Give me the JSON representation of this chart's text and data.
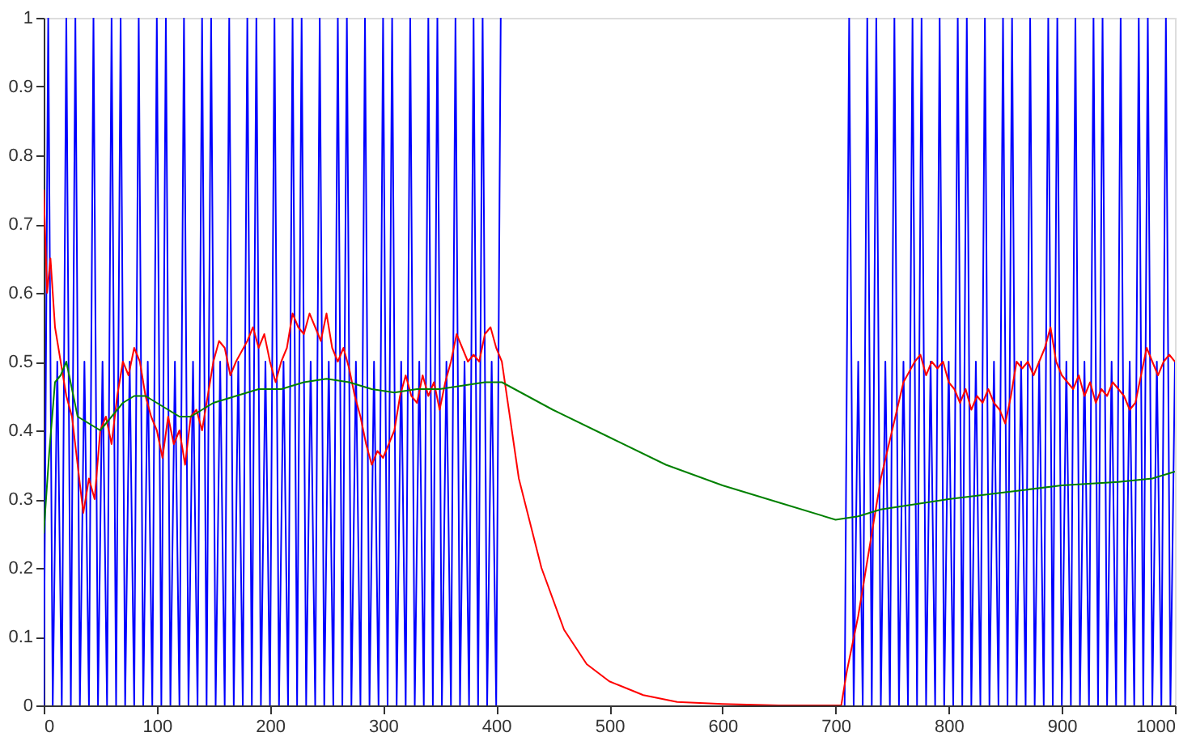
{
  "chart_data": {
    "type": "line",
    "xlim": [
      0,
      1000
    ],
    "ylim": [
      0,
      1
    ],
    "xticks": [
      0,
      100,
      200,
      300,
      400,
      500,
      600,
      700,
      800,
      900,
      1000
    ],
    "yticks": [
      0,
      0.1,
      0.2,
      0.3,
      0.4,
      0.5,
      0.6,
      0.7,
      0.8,
      0.9,
      1
    ],
    "grid": false,
    "series": [
      {
        "color": "#0000ff",
        "x": [
          0,
          4,
          8,
          12,
          16,
          20,
          24,
          28,
          32,
          36,
          40,
          44,
          48,
          52,
          56,
          60,
          64,
          68,
          72,
          76,
          80,
          84,
          88,
          92,
          96,
          100,
          104,
          108,
          112,
          116,
          120,
          124,
          128,
          132,
          136,
          140,
          144,
          148,
          152,
          156,
          160,
          164,
          168,
          172,
          176,
          180,
          184,
          188,
          192,
          196,
          200,
          204,
          208,
          212,
          216,
          220,
          224,
          228,
          232,
          236,
          240,
          244,
          248,
          252,
          256,
          260,
          264,
          268,
          272,
          276,
          280,
          284,
          288,
          292,
          296,
          300,
          304,
          308,
          312,
          316,
          320,
          324,
          328,
          332,
          336,
          340,
          344,
          348,
          352,
          356,
          360,
          364,
          368,
          372,
          376,
          380,
          384,
          388,
          392,
          396,
          400,
          404,
          406,
          708,
          712,
          716,
          720,
          724,
          728,
          732,
          736,
          740,
          744,
          748,
          752,
          756,
          760,
          764,
          768,
          772,
          776,
          780,
          784,
          788,
          792,
          796,
          800,
          804,
          808,
          812,
          816,
          820,
          824,
          828,
          832,
          836,
          840,
          844,
          848,
          852,
          856,
          860,
          864,
          868,
          872,
          876,
          880,
          884,
          888,
          892,
          896,
          900,
          904,
          908,
          912,
          916,
          920,
          924,
          928,
          932,
          936,
          940,
          944,
          948,
          952,
          956,
          960,
          964,
          968,
          972,
          976,
          980,
          984,
          988,
          992,
          996,
          1000
        ],
        "values": [
          0,
          1,
          0,
          0.5,
          0,
          1,
          0,
          1,
          0,
          0.5,
          0,
          1,
          0,
          0.5,
          0,
          1,
          0,
          1,
          0,
          0.5,
          0,
          1,
          0,
          0.5,
          0,
          1,
          0,
          1,
          0,
          0.5,
          0,
          1,
          0,
          0.5,
          0,
          1,
          0,
          1,
          0,
          0.5,
          0,
          1,
          0,
          0.5,
          0,
          1,
          0,
          1,
          0,
          0.5,
          0,
          1,
          0,
          0.5,
          0,
          1,
          0,
          1,
          0,
          0.5,
          0,
          1,
          0,
          0.5,
          0,
          1,
          0,
          1,
          0,
          0.5,
          0,
          1,
          0,
          0.5,
          0,
          1,
          0,
          1,
          0,
          0.5,
          0,
          1,
          0,
          0.5,
          0,
          1,
          0,
          1,
          0,
          0.5,
          0,
          1,
          0,
          0.5,
          0,
          1,
          0,
          1,
          0,
          0.5,
          0,
          1,
          null,
          0,
          1,
          0,
          0.5,
          0,
          1,
          0,
          1,
          0,
          0.5,
          0,
          1,
          0,
          0.5,
          0,
          1,
          0,
          1,
          0,
          0.5,
          0,
          1,
          0,
          0.5,
          0,
          1,
          0,
          1,
          0,
          0.5,
          0,
          1,
          0,
          0.5,
          0,
          1,
          0,
          1,
          0,
          0.5,
          0,
          1,
          0,
          0.5,
          0,
          1,
          0,
          1,
          0,
          0.5,
          0,
          1,
          0,
          0.5,
          0,
          1,
          0,
          1,
          0,
          0.5,
          0,
          1,
          0,
          0.5,
          0,
          1,
          0,
          1,
          0,
          0.5,
          0,
          1,
          0,
          0.5
        ]
      },
      {
        "color": "#ff0000",
        "x": [
          0,
          3,
          6,
          10,
          15,
          20,
          25,
          30,
          35,
          40,
          45,
          50,
          55,
          60,
          65,
          70,
          75,
          80,
          85,
          90,
          95,
          100,
          105,
          110,
          115,
          120,
          125,
          130,
          135,
          140,
          150,
          155,
          160,
          165,
          170,
          180,
          185,
          190,
          195,
          200,
          205,
          210,
          215,
          220,
          225,
          230,
          235,
          240,
          245,
          250,
          255,
          260,
          265,
          270,
          275,
          280,
          285,
          290,
          295,
          300,
          305,
          310,
          315,
          320,
          325,
          330,
          335,
          340,
          345,
          350,
          355,
          360,
          365,
          370,
          375,
          380,
          385,
          390,
          395,
          400,
          405,
          420,
          440,
          460,
          480,
          500,
          530,
          560,
          600,
          650,
          700,
          705,
          710,
          720,
          730,
          740,
          750,
          760,
          770,
          775,
          780,
          785,
          790,
          795,
          800,
          805,
          810,
          815,
          820,
          825,
          830,
          835,
          840,
          845,
          850,
          855,
          860,
          865,
          870,
          875,
          880,
          885,
          890,
          895,
          900,
          905,
          910,
          915,
          920,
          925,
          930,
          935,
          940,
          945,
          950,
          955,
          960,
          965,
          970,
          975,
          980,
          985,
          990,
          995,
          1000
        ],
        "values": [
          0.75,
          0.6,
          0.65,
          0.55,
          0.5,
          0.45,
          0.42,
          0.35,
          0.28,
          0.33,
          0.3,
          0.4,
          0.42,
          0.38,
          0.45,
          0.5,
          0.48,
          0.52,
          0.5,
          0.45,
          0.42,
          0.4,
          0.36,
          0.42,
          0.38,
          0.4,
          0.35,
          0.42,
          0.43,
          0.4,
          0.5,
          0.53,
          0.52,
          0.48,
          0.5,
          0.53,
          0.55,
          0.52,
          0.54,
          0.5,
          0.47,
          0.5,
          0.52,
          0.57,
          0.55,
          0.54,
          0.57,
          0.55,
          0.53,
          0.57,
          0.52,
          0.5,
          0.52,
          0.49,
          0.45,
          0.42,
          0.38,
          0.35,
          0.37,
          0.36,
          0.38,
          0.4,
          0.45,
          0.48,
          0.45,
          0.44,
          0.48,
          0.45,
          0.47,
          0.43,
          0.47,
          0.5,
          0.54,
          0.52,
          0.5,
          0.51,
          0.5,
          0.54,
          0.55,
          0.52,
          0.5,
          0.33,
          0.2,
          0.11,
          0.06,
          0.035,
          0.015,
          0.005,
          0.002,
          0,
          0,
          0,
          0.05,
          0.13,
          0.23,
          0.33,
          0.4,
          0.47,
          0.5,
          0.51,
          0.48,
          0.5,
          0.49,
          0.5,
          0.47,
          0.46,
          0.44,
          0.46,
          0.43,
          0.45,
          0.44,
          0.46,
          0.44,
          0.43,
          0.41,
          0.45,
          0.5,
          0.49,
          0.5,
          0.48,
          0.5,
          0.52,
          0.55,
          0.5,
          0.48,
          0.47,
          0.46,
          0.48,
          0.45,
          0.47,
          0.44,
          0.46,
          0.45,
          0.47,
          0.46,
          0.45,
          0.43,
          0.44,
          0.48,
          0.52,
          0.5,
          0.48,
          0.5,
          0.51,
          0.5
        ]
      },
      {
        "color": "#008000",
        "x": [
          0,
          5,
          10,
          15,
          20,
          25,
          30,
          40,
          50,
          60,
          70,
          80,
          90,
          100,
          110,
          120,
          130,
          140,
          150,
          170,
          190,
          210,
          230,
          250,
          270,
          290,
          310,
          330,
          350,
          370,
          390,
          405,
          450,
          500,
          550,
          600,
          650,
          700,
          720,
          740,
          760,
          800,
          850,
          900,
          950,
          980,
          1000
        ],
        "values": [
          0.25,
          0.37,
          0.47,
          0.48,
          0.5,
          0.46,
          0.42,
          0.41,
          0.4,
          0.42,
          0.44,
          0.45,
          0.45,
          0.44,
          0.43,
          0.42,
          0.42,
          0.43,
          0.44,
          0.45,
          0.46,
          0.46,
          0.47,
          0.475,
          0.47,
          0.46,
          0.455,
          0.46,
          0.46,
          0.465,
          0.47,
          0.47,
          0.43,
          0.39,
          0.35,
          0.32,
          0.295,
          0.27,
          0.275,
          0.285,
          0.29,
          0.3,
          0.31,
          0.32,
          0.325,
          0.33,
          0.34
        ]
      }
    ]
  }
}
